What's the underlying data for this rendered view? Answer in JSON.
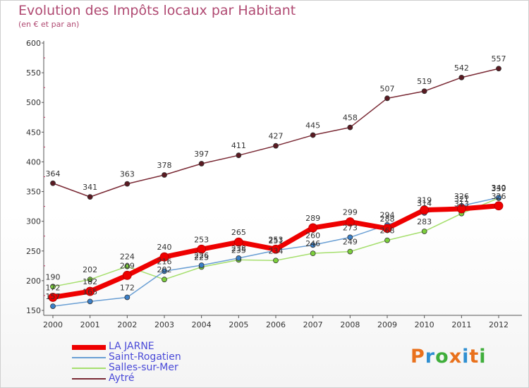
{
  "header": {
    "title": "Evolution des Impôts locaux par Habitant",
    "subtitle": "(en € et par an)"
  },
  "logo": {
    "text": "Proxiti",
    "letters": [
      "P",
      "r",
      "o",
      "x",
      "i",
      "t",
      "i"
    ],
    "colors": [
      "#e9711c",
      "#2f8fd1",
      "#3fae3b",
      "#e9711c",
      "#2f8fd1",
      "#e9711c",
      "#3fae3b"
    ]
  },
  "chart_data": {
    "type": "line",
    "title": "Evolution des Impôts locaux par Habitant",
    "subtitle": "(en € et par an)",
    "xlabel": "",
    "ylabel": "",
    "x": [
      "2000",
      "2001",
      "2002",
      "2003",
      "2004",
      "2005",
      "2006",
      "2007",
      "2008",
      "2009",
      "2010",
      "2011",
      "2012"
    ],
    "ylim": [
      150,
      600
    ],
    "yticks": [
      150,
      200,
      250,
      300,
      350,
      400,
      450,
      500,
      550,
      600
    ],
    "grid": false,
    "legend_position": "bottom-left",
    "series": [
      {
        "name": "Salles-sur-Mer",
        "color": "#a6df6e",
        "marker": "#7ccf3c",
        "width": 1.5,
        "values": [
          190,
          202,
          224,
          202,
          223,
          235,
          234,
          246,
          249,
          268,
          283,
          313,
          339
        ]
      },
      {
        "name": "Saint-Rogatien",
        "color": "#6a9fd4",
        "marker": "#3a7fc8",
        "width": 1.5,
        "values": [
          157,
          165,
          172,
          216,
          226,
          238,
          251,
          260,
          273,
          294,
          314,
          326,
          340
        ]
      },
      {
        "name": "Aytré",
        "color": "#7a2a35",
        "marker": "#5a1a22",
        "width": 1.5,
        "values": [
          364,
          341,
          363,
          378,
          397,
          411,
          427,
          445,
          458,
          507,
          519,
          542,
          557
        ]
      },
      {
        "name": "LA JARNE",
        "color": "#ee0000",
        "marker": "#ee0000",
        "width": 7,
        "values": [
          172,
          182,
          209,
          240,
          253,
          265,
          253,
          289,
          299,
          288,
          319,
          321,
          326
        ]
      }
    ],
    "legend_order": [
      "LA JARNE",
      "Saint-Rogatien",
      "Salles-sur-Mer",
      "Aytré"
    ]
  }
}
